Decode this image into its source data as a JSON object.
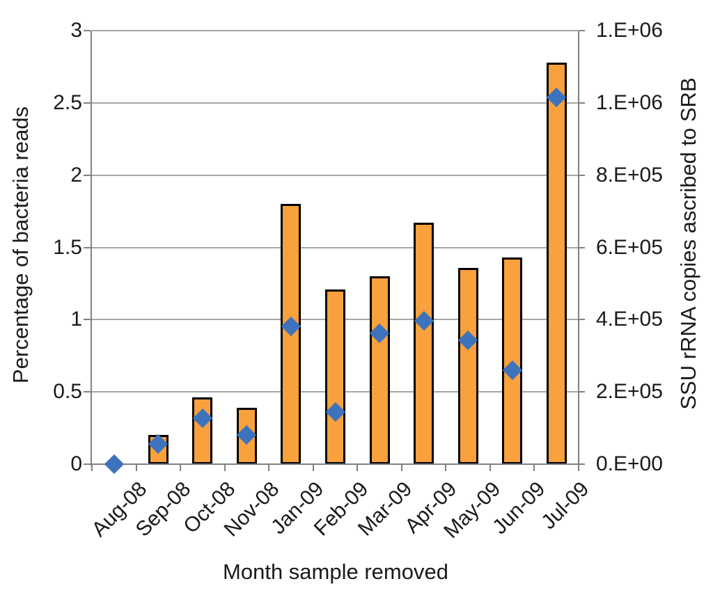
{
  "chart_data": {
    "type": "bar",
    "subtype": "combo-bar-and-diamond-scatter",
    "categories": [
      "Aug-08",
      "Sep-08",
      "Oct-08",
      "Nov-08",
      "Jan-09",
      "Feb-09",
      "Mar-09",
      "Apr-09",
      "May-09",
      "Jun-09",
      "Jul-09"
    ],
    "series": [
      {
        "name": "Percentage of bacteria reads",
        "type": "bar",
        "axis": "left",
        "color": "#f9a13c",
        "border_color": "#000000",
        "values": [
          0,
          0.2,
          0.46,
          0.39,
          1.8,
          1.21,
          1.3,
          1.67,
          1.36,
          1.43,
          2.78
        ]
      },
      {
        "name": "SSU rRNA copies ascribed to SRB",
        "type": "scatter-diamond",
        "axis": "right",
        "color": "#3d73bc",
        "values": [
          0,
          55000,
          127000,
          81000,
          381000,
          144000,
          363000,
          396000,
          342000,
          260000,
          1015000
        ]
      }
    ],
    "left_axis": {
      "label": "Percentage of bacteria reads",
      "min": 0,
      "max": 3,
      "tick_labels": [
        "0",
        "0.5",
        "1",
        "1.5",
        "2",
        "2.5",
        "3"
      ]
    },
    "right_axis": {
      "label": "SSU rRNA copies ascribed to SRB",
      "min": 0,
      "max": 1200000,
      "tick_labels": [
        "0.E+00",
        "2.E+05",
        "4.E+05",
        "6.E+05",
        "8.E+05",
        "1.E+06",
        "1.E+06"
      ]
    },
    "x_axis": {
      "label": "Month sample removed"
    },
    "grid": true,
    "legend": "none",
    "gridline_color": "#a6a6a6",
    "axis_color": "#808080"
  }
}
